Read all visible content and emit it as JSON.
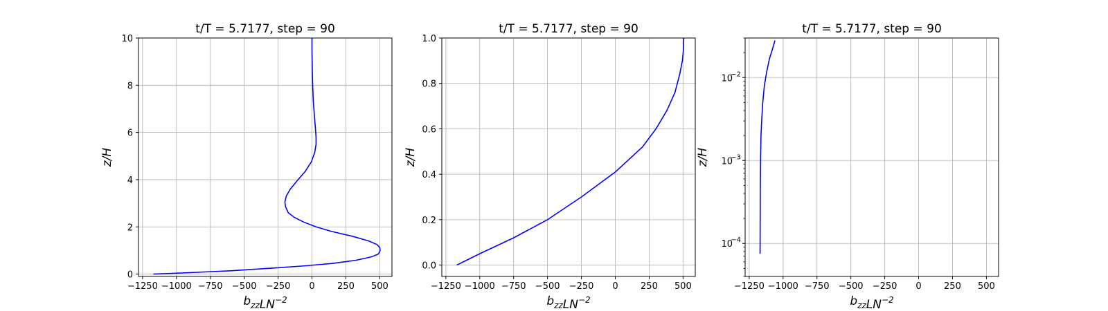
{
  "colors": {
    "line": "#0000ff",
    "grid": "#b0b0b0",
    "axes": "#000000"
  },
  "chart_data": [
    {
      "type": "line",
      "title": "t/T = 5.7177, step = 90",
      "xlabel": "b_{zz}LN^{-2}",
      "ylabel": "z/H",
      "xlim": [
        -1280,
        590
      ],
      "ylim": [
        -0.1,
        10
      ],
      "yscale": "linear",
      "grid": true,
      "xticks": [
        -1250,
        -1000,
        -750,
        -500,
        -250,
        0,
        250,
        500
      ],
      "xtick_labels": [
        "−1250",
        "−1000",
        "−750",
        "−500",
        "−250",
        "0",
        "250",
        "500"
      ],
      "yticks": [
        0,
        2,
        4,
        6,
        8,
        10
      ],
      "ytick_labels": [
        "0",
        "2",
        "4",
        "6",
        "8",
        "10"
      ],
      "series": [
        {
          "x": [
            -1170,
            -950,
            -600,
            -300,
            -50,
            150,
            320,
            440,
            490,
            503,
            500,
            480,
            420,
            300,
            150,
            30,
            -60,
            -130,
            -175,
            -195,
            -200,
            -190,
            -160,
            -110,
            -50,
            -5,
            20,
            30,
            30,
            25,
            18,
            10,
            5,
            2,
            0,
            0
          ],
          "y": [
            0,
            0.05,
            0.14,
            0.25,
            0.35,
            0.45,
            0.58,
            0.73,
            0.85,
            1.0,
            1.12,
            1.25,
            1.4,
            1.6,
            1.8,
            2.0,
            2.2,
            2.4,
            2.6,
            2.85,
            3.05,
            3.3,
            3.6,
            3.95,
            4.35,
            4.75,
            5.15,
            5.5,
            5.8,
            6.2,
            6.7,
            7.3,
            8.0,
            8.7,
            9.4,
            10.0
          ]
        }
      ]
    },
    {
      "type": "line",
      "title": "t/T = 5.7177, step = 90",
      "xlabel": "b_{zz}LN^{-2}",
      "ylabel": "z/H",
      "xlim": [
        -1280,
        590
      ],
      "ylim": [
        -0.05,
        1.0
      ],
      "yscale": "linear",
      "grid": true,
      "xticks": [
        -1250,
        -1000,
        -750,
        -500,
        -250,
        0,
        250,
        500
      ],
      "xtick_labels": [
        "−1250",
        "−1000",
        "−750",
        "−500",
        "−250",
        "0",
        "250",
        "500"
      ],
      "yticks": [
        0.0,
        0.2,
        0.4,
        0.6,
        0.8,
        1.0
      ],
      "ytick_labels": [
        "0.0",
        "0.2",
        "0.4",
        "0.6",
        "0.8",
        "1.0"
      ],
      "series": [
        {
          "x": [
            -1170,
            -1000,
            -750,
            -500,
            -250,
            0,
            200,
            300,
            380,
            440,
            475,
            495,
            503,
            505
          ],
          "y": [
            0,
            0.05,
            0.12,
            0.2,
            0.3,
            0.41,
            0.52,
            0.6,
            0.68,
            0.76,
            0.84,
            0.9,
            0.95,
            1.0
          ]
        }
      ]
    },
    {
      "type": "line",
      "title": "t/T = 5.7177, step = 90",
      "xlabel": "b_{zz}LN^{-2}",
      "ylabel": "z/H",
      "xlim": [
        -1280,
        590
      ],
      "ylim": [
        4e-05,
        0.03
      ],
      "yscale": "log",
      "grid": true,
      "xticks": [
        -1250,
        -1000,
        -750,
        -500,
        -250,
        0,
        250,
        500
      ],
      "xtick_labels": [
        "−1250",
        "−1000",
        "−750",
        "−500",
        "−250",
        "0",
        "250",
        "500"
      ],
      "yticks": [
        0.0001,
        0.001,
        0.01
      ],
      "ytick_labels": [
        "10",
        "10",
        "10"
      ],
      "ytick_exponents": [
        "−4",
        "−3",
        "−2"
      ],
      "series": [
        {
          "x": [
            -1169.8,
            -1169.5,
            -1169,
            -1168,
            -1166,
            -1163,
            -1158,
            -1150,
            -1138,
            -1120,
            -1100,
            -1075,
            -1060
          ],
          "y": [
            7.5e-05,
            0.0001,
            0.0002,
            0.0005,
            0.001,
            0.002,
            0.003,
            0.005,
            0.008,
            0.012,
            0.017,
            0.023,
            0.028
          ]
        }
      ]
    }
  ]
}
